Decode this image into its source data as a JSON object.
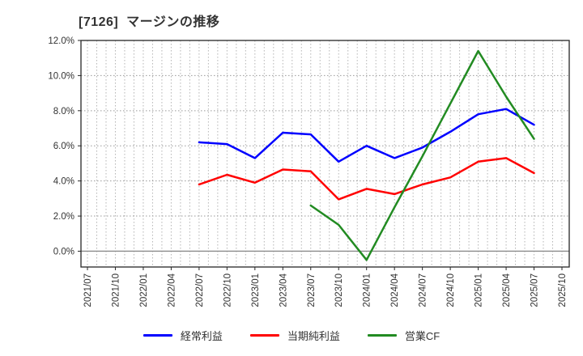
{
  "title": "[7126]  マージンの推移",
  "chart_data": {
    "type": "line",
    "categories": [
      "2021/07",
      "2021/10",
      "2022/01",
      "2022/04",
      "2022/07",
      "2022/10",
      "2023/01",
      "2023/04",
      "2023/07",
      "2023/10",
      "2024/01",
      "2024/04",
      "2024/07",
      "2024/10",
      "2025/01",
      "2025/04",
      "2025/07",
      "2025/10"
    ],
    "series": [
      {
        "name": "経常利益",
        "color": "#0000ff",
        "start": "2022/07",
        "values": [
          6.2,
          6.1,
          5.3,
          6.75,
          6.65,
          5.1,
          6.0,
          5.3,
          5.9,
          6.8,
          7.8,
          8.1,
          7.2
        ]
      },
      {
        "name": "当期純利益",
        "color": "#ff0000",
        "start": "2022/07",
        "values": [
          3.8,
          4.35,
          3.9,
          4.65,
          4.55,
          2.95,
          3.55,
          3.25,
          3.8,
          4.2,
          5.1,
          5.3,
          4.45
        ]
      },
      {
        "name": "営業CF",
        "color": "#228b22",
        "start": "2023/07",
        "values": [
          2.6,
          1.5,
          -0.5,
          2.5,
          5.4,
          8.4,
          11.4,
          8.8,
          6.4
        ]
      }
    ],
    "ylim": [
      -0.9,
      12
    ],
    "yticks": [
      {
        "value": 0,
        "label": "0.0%"
      },
      {
        "value": 2,
        "label": "2.0%"
      },
      {
        "value": 4,
        "label": "4.0%"
      },
      {
        "value": 6,
        "label": "6.0%"
      },
      {
        "value": 8,
        "label": "8.0%"
      },
      {
        "value": 10,
        "label": "10.0%"
      },
      {
        "value": 12,
        "label": "12.0%"
      }
    ],
    "minor_x_divisions": 3,
    "grid": true,
    "legend_position": "bottom"
  }
}
